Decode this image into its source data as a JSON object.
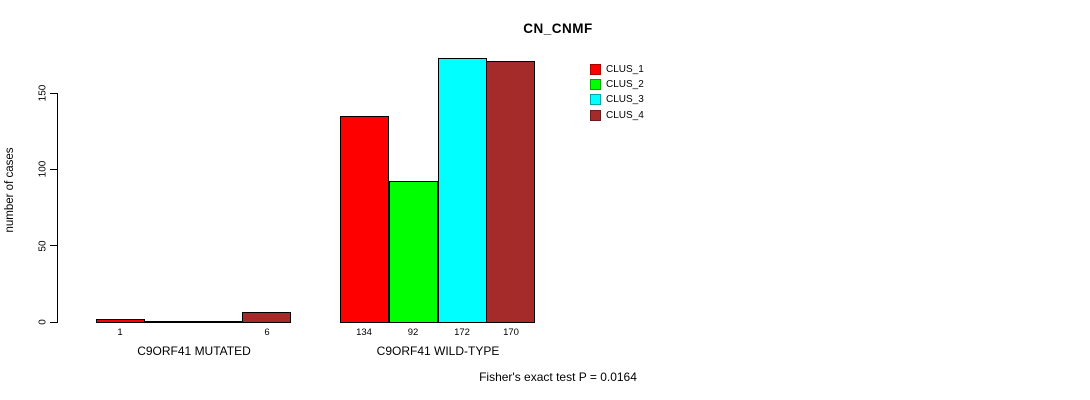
{
  "title": "CN_CNMF",
  "footnote": "Fisher's exact test P = 0.0164",
  "chart_data": {
    "type": "bar",
    "title": "CN_CNMF",
    "xlabel": "",
    "ylabel": "number of cases",
    "groups": [
      "C9ORF41 MUTATED",
      "C9ORF41 WILD-TYPE"
    ],
    "series": [
      {
        "name": "CLUS_1",
        "color": "#ff0000",
        "values": [
          1,
          134
        ]
      },
      {
        "name": "CLUS_2",
        "color": "#00ff00",
        "values": [
          0,
          92
        ]
      },
      {
        "name": "CLUS_3",
        "color": "#00ffff",
        "values": [
          0,
          172
        ]
      },
      {
        "name": "CLUS_4",
        "color": "#a52a2a",
        "values": [
          6,
          170
        ]
      }
    ],
    "yticks": [
      0,
      50,
      100,
      150
    ],
    "ylim": [
      0,
      172
    ],
    "grid": false,
    "legend_position": "top-right",
    "bar_value_labels": {
      "C9ORF41 MUTATED": [
        1,
        null,
        null,
        6
      ],
      "C9ORF41 WILD-TYPE": [
        134,
        92,
        172,
        170
      ]
    },
    "annotation": "Fisher's exact test P = 0.0164"
  }
}
